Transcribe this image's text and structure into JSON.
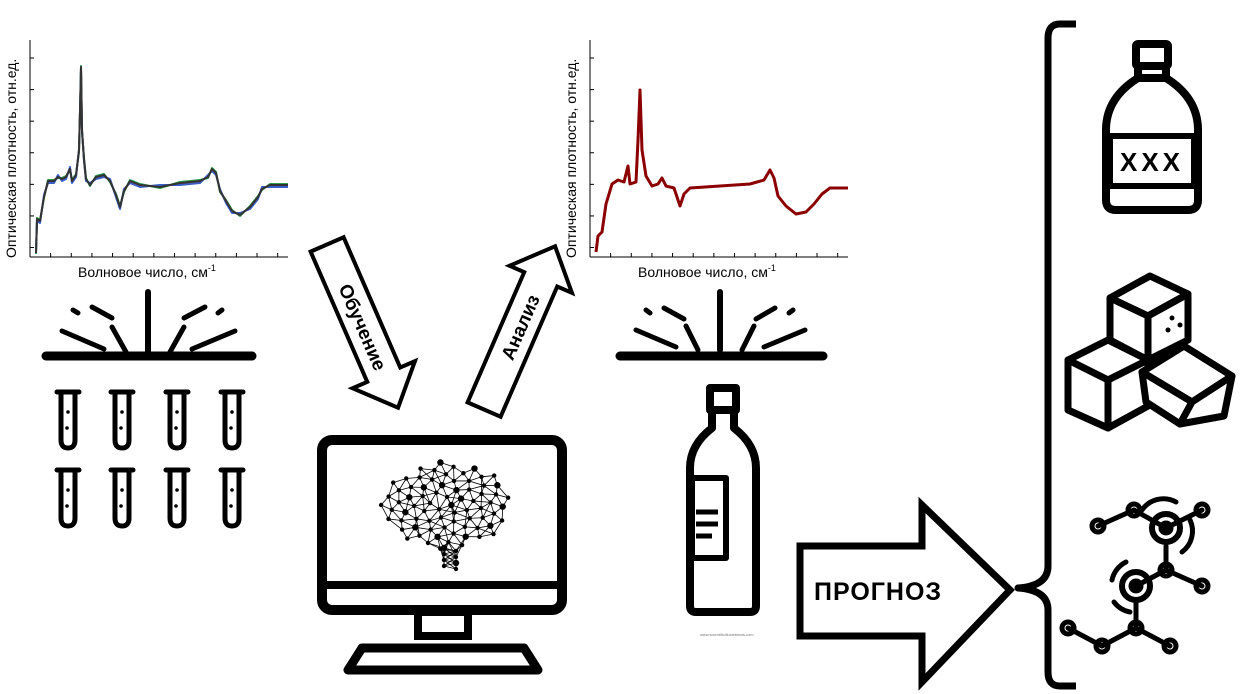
{
  "spectrum_left": {
    "xlabel": "Волновое число, см",
    "xlabel_sup": "-1",
    "ylabel": "Оптическая плотность, отн.ед.",
    "series_colors": [
      "#e03c3c",
      "#2e9a4a",
      "#3a5fc8",
      "#333333"
    ]
  },
  "spectrum_right": {
    "xlabel": "Волновое число, см",
    "xlabel_sup": "-1",
    "ylabel": "Оптическая плотность, отн.ед.",
    "series_color": "#8b0000"
  },
  "arrows": {
    "training": "Обучение",
    "analysis": "Анализ",
    "forecast": "ПРОГНОЗ"
  },
  "bottle_label": "XXX",
  "tiny_caption": "www.scientificillustrations.com",
  "icons": {
    "samples": "test-tubes-icon",
    "computer": "computer-brain-network-icon",
    "bottle": "wine-bottle-icon",
    "whisky": "whisky-bottle-icon",
    "sugar": "sugar-cubes-icon",
    "molecule": "molecule-icon"
  }
}
